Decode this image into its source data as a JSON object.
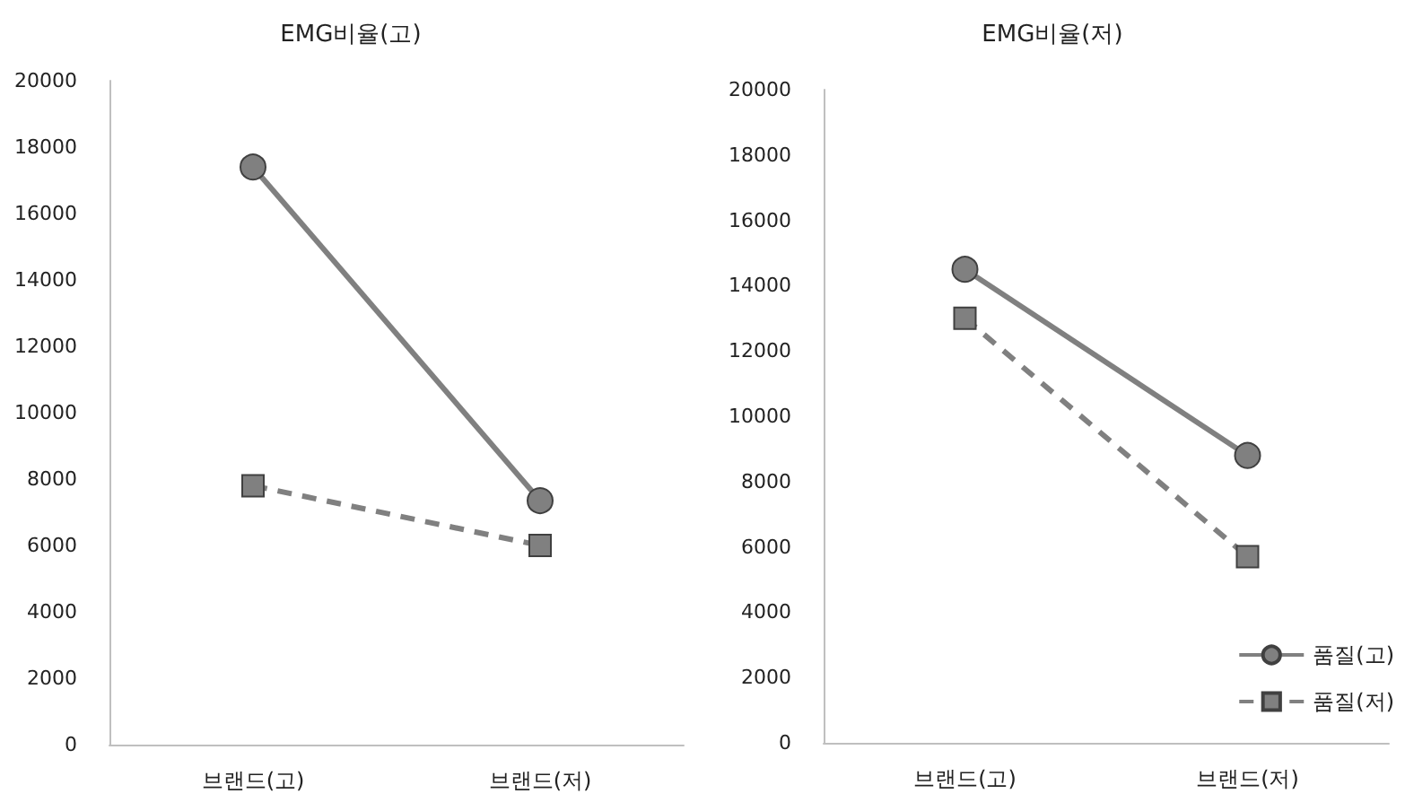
{
  "chart_data": [
    {
      "type": "line",
      "title": "EMG비율(고)",
      "categories": [
        "브랜드(고)",
        "브랜드(저)"
      ],
      "ylim": [
        0,
        20000
      ],
      "yticks": [
        0,
        2000,
        4000,
        6000,
        8000,
        10000,
        12000,
        14000,
        16000,
        18000,
        20000
      ],
      "grid": false,
      "legend": false,
      "series": [
        {
          "color": "#808080",
          "marker": "circle",
          "line_style": "solid",
          "values": [
            17400,
            7350
          ]
        },
        {
          "color": "#808080",
          "marker": "square",
          "line_style": "dashed",
          "values": [
            7800,
            6000
          ]
        }
      ]
    },
    {
      "type": "line",
      "title": "EMG비율(저)",
      "categories": [
        "브랜드(고)",
        "브랜드(저)"
      ],
      "ylim": [
        0,
        20000
      ],
      "yticks": [
        0,
        2000,
        4000,
        6000,
        8000,
        10000,
        12000,
        14000,
        16000,
        18000,
        20000
      ],
      "grid": false,
      "legend": "bottom right",
      "series": [
        {
          "name": "품질(고)",
          "color": "#808080",
          "marker": "circle",
          "line_style": "solid",
          "values": [
            14500,
            8800
          ]
        },
        {
          "name": "품질(저)",
          "color": "#808080",
          "marker": "square",
          "line_style": "dashed",
          "values": [
            13000,
            5700
          ]
        }
      ]
    }
  ]
}
